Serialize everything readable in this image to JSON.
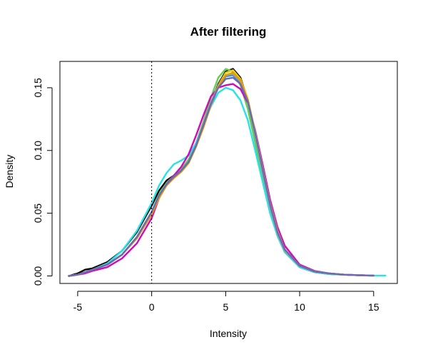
{
  "chart_data": {
    "type": "line",
    "title": "After filtering",
    "xlabel": "Intensity",
    "ylabel": "Density",
    "xlim": [
      -6.2,
      16.6
    ],
    "ylim": [
      -0.006,
      0.171
    ],
    "x_ticks": [
      -5,
      0,
      5,
      10,
      15
    ],
    "x_tick_labels": [
      "-5",
      "0",
      "5",
      "10",
      "15"
    ],
    "y_ticks": [
      0.0,
      0.05,
      0.1,
      0.15
    ],
    "y_tick_labels": [
      "0.00",
      "0.05",
      "0.10",
      "0.15"
    ],
    "vline": {
      "x": 0,
      "style": "dotted"
    },
    "grid": false,
    "legend": "none",
    "series": [
      {
        "color": "#000000",
        "x": [
          -5.6,
          -5,
          -4.5,
          -4,
          -3,
          -2,
          -1,
          0,
          0.5,
          1,
          1.5,
          2,
          2.5,
          3,
          3.5,
          4,
          4.5,
          5,
          5.5,
          6,
          6.5,
          7,
          7.5,
          8,
          8.5,
          9,
          10,
          11,
          12,
          13,
          14,
          15
        ],
        "y": [
          0.0,
          0.002,
          0.005,
          0.006,
          0.011,
          0.02,
          0.035,
          0.056,
          0.068,
          0.076,
          0.08,
          0.085,
          0.092,
          0.105,
          0.12,
          0.137,
          0.153,
          0.163,
          0.165,
          0.158,
          0.14,
          0.11,
          0.08,
          0.052,
          0.032,
          0.019,
          0.007,
          0.003,
          0.0015,
          0.001,
          0.0005,
          0.0002
        ]
      },
      {
        "color": "#DF536B",
        "x": [
          -5.6,
          -5,
          -4.5,
          -4,
          -3,
          -2,
          -1,
          0,
          0.5,
          1,
          1.5,
          2,
          2.5,
          3,
          3.5,
          4,
          4.5,
          5,
          5.5,
          6,
          6.5,
          7,
          7.5,
          8,
          8.5,
          9,
          10,
          11,
          12,
          13,
          14,
          15
        ],
        "y": [
          0.0,
          0.001,
          0.003,
          0.005,
          0.009,
          0.017,
          0.03,
          0.05,
          0.064,
          0.073,
          0.079,
          0.084,
          0.091,
          0.104,
          0.12,
          0.136,
          0.151,
          0.16,
          0.16,
          0.154,
          0.139,
          0.113,
          0.084,
          0.056,
          0.035,
          0.021,
          0.008,
          0.0035,
          0.002,
          0.001,
          0.0006,
          0.0003
        ]
      },
      {
        "color": "#61D04F",
        "x": [
          -5.6,
          -5,
          -4.5,
          -4,
          -3,
          -2,
          -1,
          0,
          0.5,
          1,
          1.5,
          2,
          2.5,
          3,
          3.5,
          4,
          4.5,
          5,
          5.5,
          6,
          6.5,
          7,
          7.5,
          8,
          8.5,
          9,
          10,
          11,
          12,
          13,
          14,
          15
        ],
        "y": [
          0.0,
          0.001,
          0.003,
          0.005,
          0.009,
          0.017,
          0.031,
          0.051,
          0.065,
          0.074,
          0.08,
          0.085,
          0.093,
          0.106,
          0.123,
          0.142,
          0.158,
          0.165,
          0.163,
          0.152,
          0.133,
          0.106,
          0.078,
          0.051,
          0.032,
          0.019,
          0.007,
          0.003,
          0.0015,
          0.001,
          0.0005,
          0.0002
        ]
      },
      {
        "color": "#2297E6",
        "x": [
          -5.6,
          -5,
          -4.5,
          -4,
          -3,
          -2,
          -1,
          0,
          0.5,
          1,
          1.5,
          2,
          2.5,
          3,
          3.5,
          4,
          4.5,
          5,
          5.5,
          6,
          6.5,
          7,
          7.5,
          8,
          8.5,
          9,
          10,
          11,
          12,
          13,
          14,
          15
        ],
        "y": [
          0.0,
          0.001,
          0.003,
          0.005,
          0.009,
          0.017,
          0.031,
          0.051,
          0.064,
          0.073,
          0.079,
          0.084,
          0.091,
          0.104,
          0.12,
          0.137,
          0.151,
          0.159,
          0.16,
          0.154,
          0.139,
          0.113,
          0.084,
          0.056,
          0.035,
          0.021,
          0.008,
          0.0035,
          0.002,
          0.001,
          0.0006,
          0.0003
        ]
      },
      {
        "color": "#28E2E5",
        "x": [
          -5.6,
          -5,
          -4.5,
          -4,
          -3,
          -2,
          -1,
          0,
          0.5,
          1,
          1.5,
          2,
          2.5,
          3,
          3.5,
          4,
          4.5,
          5,
          5.5,
          6,
          6.5,
          7,
          7.5,
          8,
          8.5,
          9,
          10,
          11,
          12,
          13,
          14,
          15,
          15.8
        ],
        "y": [
          0.0,
          0.001,
          0.003,
          0.005,
          0.01,
          0.02,
          0.036,
          0.058,
          0.072,
          0.082,
          0.089,
          0.092,
          0.096,
          0.106,
          0.12,
          0.135,
          0.146,
          0.15,
          0.148,
          0.14,
          0.124,
          0.1,
          0.075,
          0.05,
          0.032,
          0.019,
          0.007,
          0.003,
          0.0015,
          0.001,
          0.0005,
          0.0002,
          0.0002
        ]
      },
      {
        "color": "#CD0BBC",
        "x": [
          -5.6,
          -5,
          -4.5,
          -4,
          -3,
          -2,
          -1,
          0,
          0.5,
          1,
          1.5,
          2,
          2.5,
          3,
          3.5,
          4,
          4.5,
          5,
          5.5,
          6,
          6.5,
          7,
          7.5,
          8,
          8.5,
          9,
          10,
          11,
          12,
          13,
          14,
          15
        ],
        "y": [
          0.0,
          0.001,
          0.002,
          0.004,
          0.007,
          0.014,
          0.026,
          0.046,
          0.062,
          0.073,
          0.08,
          0.087,
          0.097,
          0.112,
          0.128,
          0.143,
          0.15,
          0.152,
          0.153,
          0.149,
          0.138,
          0.116,
          0.089,
          0.061,
          0.039,
          0.024,
          0.009,
          0.004,
          0.002,
          0.001,
          0.0006,
          0.0003
        ]
      },
      {
        "color": "#F5C710",
        "x": [
          -5.6,
          -5,
          -4.5,
          -4,
          -3,
          -2,
          -1,
          0,
          0.5,
          1,
          1.5,
          2,
          2.5,
          3,
          3.5,
          4,
          4.5,
          5,
          5.5,
          6,
          6.5,
          7,
          7.5,
          8,
          8.5,
          9,
          10,
          11,
          12,
          13,
          14,
          15
        ],
        "y": [
          0.0,
          0.001,
          0.003,
          0.005,
          0.009,
          0.017,
          0.03,
          0.05,
          0.063,
          0.072,
          0.078,
          0.083,
          0.09,
          0.103,
          0.118,
          0.136,
          0.152,
          0.162,
          0.164,
          0.157,
          0.141,
          0.115,
          0.086,
          0.058,
          0.036,
          0.021,
          0.008,
          0.0035,
          0.002,
          0.001,
          0.0006,
          0.0003
        ]
      },
      {
        "color": "#9E9E9E",
        "x": [
          -5.6,
          -5,
          -4.5,
          -4,
          -3,
          -2,
          -1,
          0,
          0.5,
          1,
          1.5,
          2,
          2.5,
          3,
          3.5,
          4,
          4.5,
          5,
          5.5,
          6,
          6.5,
          7,
          7.5,
          8,
          8.5,
          9,
          10,
          11,
          12,
          13,
          14,
          15
        ],
        "y": [
          0.0,
          0.001,
          0.003,
          0.005,
          0.009,
          0.017,
          0.031,
          0.051,
          0.064,
          0.073,
          0.079,
          0.084,
          0.091,
          0.104,
          0.121,
          0.138,
          0.152,
          0.16,
          0.161,
          0.155,
          0.139,
          0.112,
          0.083,
          0.055,
          0.034,
          0.02,
          0.008,
          0.0035,
          0.002,
          0.001,
          0.0006,
          0.0003
        ]
      },
      {
        "color": "#E69F00",
        "x": [
          -5.6,
          -5,
          -4.5,
          -4,
          -3,
          -2,
          -1,
          0,
          0.5,
          1,
          1.5,
          2,
          2.5,
          3,
          3.5,
          4,
          4.5,
          5,
          5.5,
          6,
          6.5,
          7,
          7.5,
          8,
          8.5,
          9,
          10,
          11,
          12,
          13,
          14,
          15
        ],
        "y": [
          0.0,
          0.001,
          0.003,
          0.005,
          0.009,
          0.017,
          0.03,
          0.049,
          0.062,
          0.072,
          0.078,
          0.083,
          0.09,
          0.103,
          0.119,
          0.136,
          0.151,
          0.16,
          0.162,
          0.156,
          0.14,
          0.114,
          0.085,
          0.057,
          0.035,
          0.021,
          0.008,
          0.0035,
          0.002,
          0.001,
          0.0006,
          0.0003
        ]
      },
      {
        "color": "#6A6AB8",
        "x": [
          -5.6,
          -5,
          -4.5,
          -4,
          -3,
          -2,
          -1,
          0,
          0.5,
          1,
          1.5,
          2,
          2.5,
          3,
          3.5,
          4,
          4.5,
          5,
          5.5,
          6,
          6.5,
          7,
          7.5,
          8,
          8.5,
          9,
          10,
          11,
          12,
          13,
          14,
          15
        ],
        "y": [
          0.0,
          0.001,
          0.003,
          0.005,
          0.009,
          0.017,
          0.031,
          0.051,
          0.064,
          0.073,
          0.079,
          0.084,
          0.091,
          0.104,
          0.12,
          0.137,
          0.15,
          0.157,
          0.158,
          0.153,
          0.139,
          0.114,
          0.085,
          0.057,
          0.035,
          0.021,
          0.008,
          0.0035,
          0.002,
          0.001,
          0.0006,
          0.0003
        ]
      }
    ]
  }
}
